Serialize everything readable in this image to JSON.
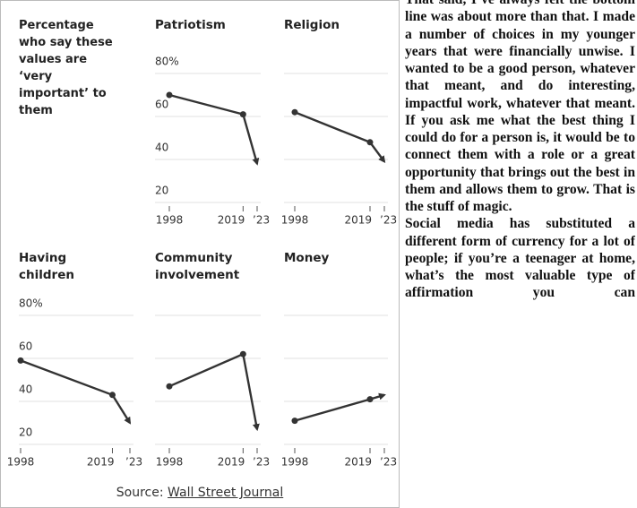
{
  "intro": "Percentage who say these values are ‘very important’ to them",
  "axes": {
    "x": [
      1998,
      2019,
      2023
    ],
    "xlim": [
      1998,
      2023
    ],
    "xticks": [
      1998,
      2019,
      {
        "value": 2023,
        "label": "’23"
      }
    ],
    "ylim": [
      15,
      85
    ],
    "yticks": [
      {
        "value": 80,
        "label": "80%"
      },
      60,
      40,
      20
    ],
    "grid": true
  },
  "chart_data": [
    {
      "type": "line",
      "title": "Patriotism",
      "values": [
        70,
        61,
        38
      ],
      "color": "#333333"
    },
    {
      "type": "line",
      "title": "Religion",
      "values": [
        62,
        48,
        39
      ],
      "color": "#333333"
    },
    {
      "type": "line",
      "title": "Having children",
      "values": [
        59,
        43,
        30
      ],
      "color": "#333333"
    },
    {
      "type": "line",
      "title": "Community involvement",
      "values": [
        47,
        62,
        27
      ],
      "color": "#333333"
    },
    {
      "type": "line",
      "title": "Money",
      "values": [
        31,
        41,
        43
      ],
      "color": "#333333"
    }
  ],
  "source": {
    "label": "Source:",
    "link": "Wall Street Journal"
  },
  "article": {
    "paragraphs": [
      "That said, I’ve always felt the bottom line was about more than that. I made a number of choices in my younger years that were financially unwise. I wanted to be a good person, whatever that meant, and do interesting, impactful work, whatever that meant. If you ask me what the best thing I could do for a person is, it would be to connect them with a role or a great opportunity that brings out the best in them and allows them to grow. That is the stuff of magic.",
      "Social media has substituted a different form of currency for a lot of people; if you’re a teenager at home, what’s the most valuable type of affirmation you can"
    ]
  }
}
